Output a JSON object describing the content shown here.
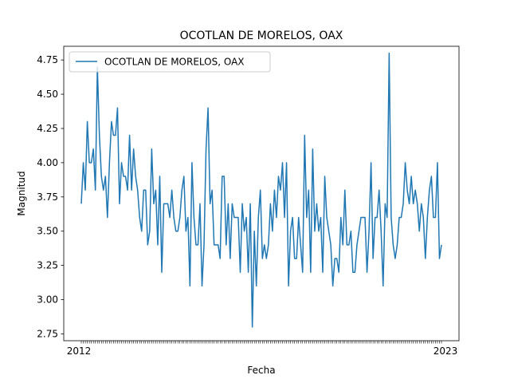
{
  "chart_data": {
    "type": "line",
    "title": "OCOTLAN DE MORELOS, OAX",
    "xlabel": "Fecha",
    "ylabel": "Magnitud",
    "ylim": [
      2.7,
      4.85
    ],
    "yticks": [
      "2.75",
      "3.00",
      "3.25",
      "3.50",
      "3.75",
      "4.00",
      "4.25",
      "4.50",
      "4.75"
    ],
    "ytick_values": [
      2.75,
      3.0,
      3.25,
      3.5,
      3.75,
      4.0,
      4.25,
      4.5,
      4.75
    ],
    "legend_position": "upper-left",
    "grid": false,
    "xtick_label_start": "2012",
    "xtick_label_end": "2023",
    "series": [
      {
        "name": "OCOTLAN DE MORELOS, OAX",
        "color": "#1f77b4",
        "values": [
          3.7,
          4.0,
          3.8,
          4.3,
          4.0,
          4.0,
          4.1,
          3.8,
          4.7,
          4.2,
          3.9,
          3.8,
          3.9,
          3.6,
          4.0,
          4.3,
          4.2,
          4.2,
          4.4,
          3.7,
          4.0,
          3.9,
          3.9,
          3.8,
          4.2,
          3.8,
          4.1,
          3.9,
          3.8,
          3.6,
          3.5,
          3.8,
          3.8,
          3.4,
          3.5,
          4.1,
          3.7,
          3.8,
          3.4,
          3.9,
          3.2,
          3.7,
          3.7,
          3.7,
          3.6,
          3.8,
          3.6,
          3.5,
          3.5,
          3.6,
          3.8,
          3.9,
          3.5,
          3.6,
          3.1,
          4.0,
          3.6,
          3.4,
          3.4,
          3.7,
          3.1,
          3.4,
          4.1,
          4.4,
          3.7,
          3.8,
          3.4,
          3.4,
          3.4,
          3.3,
          3.9,
          3.9,
          3.4,
          3.7,
          3.3,
          3.7,
          3.6,
          3.6,
          3.6,
          3.2,
          3.7,
          3.5,
          3.6,
          3.2,
          3.7,
          2.8,
          3.5,
          3.1,
          3.6,
          3.8,
          3.3,
          3.4,
          3.3,
          3.4,
          3.7,
          3.5,
          3.8,
          3.6,
          3.9,
          3.8,
          4.0,
          3.6,
          4.0,
          3.1,
          3.5,
          3.6,
          3.3,
          3.3,
          3.6,
          3.4,
          3.2,
          4.2,
          3.6,
          3.8,
          3.2,
          4.1,
          3.5,
          3.7,
          3.5,
          3.6,
          3.2,
          3.9,
          3.6,
          3.5,
          3.4,
          3.1,
          3.3,
          3.3,
          3.2,
          3.6,
          3.4,
          3.8,
          3.4,
          3.4,
          3.5,
          3.2,
          3.2,
          3.4,
          3.5,
          3.6,
          3.6,
          3.6,
          3.2,
          3.5,
          4.0,
          3.3,
          3.6,
          3.6,
          3.8,
          3.5,
          3.1,
          3.7,
          3.6,
          4.8,
          3.6,
          3.4,
          3.3,
          3.4,
          3.6,
          3.6,
          3.7,
          4.0,
          3.8,
          3.7,
          3.9,
          3.7,
          3.8,
          3.7,
          3.5,
          3.7,
          3.6,
          3.3,
          3.6,
          3.8,
          3.9,
          3.6,
          3.6,
          4.0,
          3.3,
          3.4
        ]
      }
    ]
  }
}
